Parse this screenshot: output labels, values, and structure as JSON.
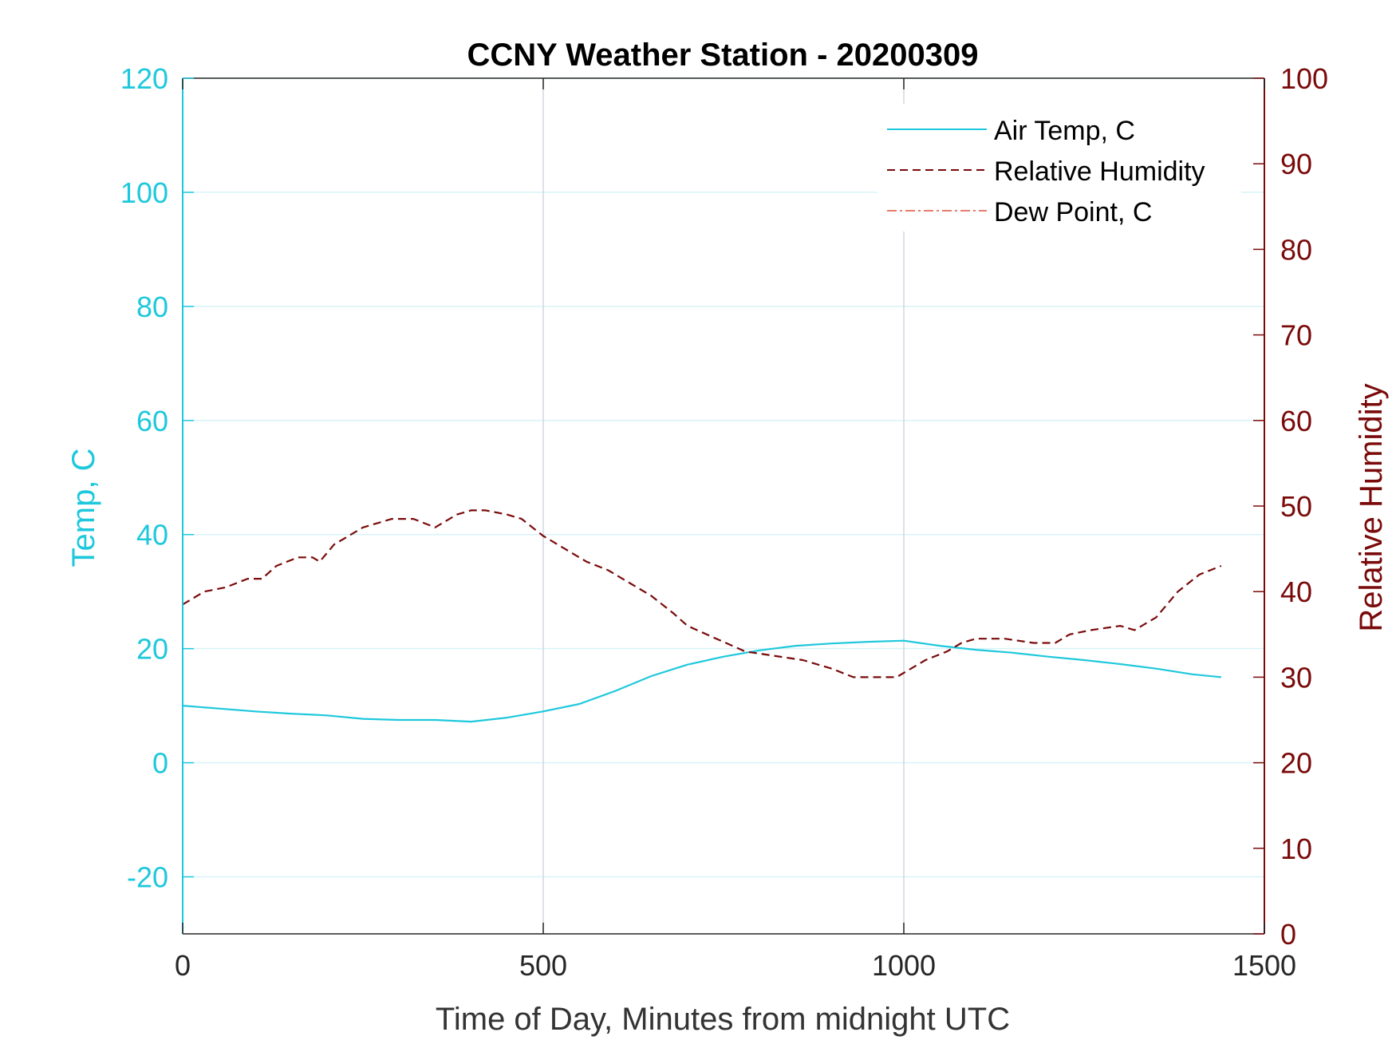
{
  "chart_data": {
    "type": "line",
    "title": "CCNY Weather Station - 20200309",
    "xlabel": "Time of Day, Minutes from midnight UTC",
    "ylabel_left": "Temp, C",
    "ylabel_right": "Relative Humidity",
    "xlim": [
      0,
      1500
    ],
    "ylim_left": [
      -30,
      120
    ],
    "ylim_right": [
      0,
      100
    ],
    "x_ticks": [
      0,
      500,
      1000,
      1500
    ],
    "y_left_ticks": [
      -20,
      0,
      20,
      40,
      60,
      80,
      100,
      120
    ],
    "y_right_ticks": [
      0,
      10,
      20,
      30,
      40,
      50,
      60,
      70,
      80,
      90,
      100
    ],
    "grid": true,
    "legend_position": "top-right",
    "colors": {
      "air_temp": "#1ec8dc",
      "humidity": "#7a0a0a",
      "dew_point": "#e0503c",
      "left_axis": "#1ec8dc",
      "right_axis": "#7a0a0a",
      "grid_y": "#d8f3f8",
      "grid_x": "#d0d8e0"
    },
    "series": [
      {
        "name": "Air Temp, C",
        "axis": "left",
        "style": "solid",
        "x": [
          0,
          50,
          100,
          150,
          200,
          250,
          300,
          350,
          400,
          450,
          500,
          550,
          600,
          650,
          700,
          750,
          800,
          850,
          900,
          950,
          1000,
          1050,
          1100,
          1150,
          1200,
          1250,
          1300,
          1350,
          1400,
          1440
        ],
        "values": [
          10,
          9.5,
          9,
          8.6,
          8.3,
          7.7,
          7.5,
          7.5,
          7.2,
          7.9,
          9,
          10.3,
          12.6,
          15.2,
          17.2,
          18.6,
          19.7,
          20.5,
          20.9,
          21.2,
          21.4,
          20.5,
          19.8,
          19.3,
          18.6,
          18,
          17.3,
          16.5,
          15.5,
          15
        ]
      },
      {
        "name": "Relative Humidity",
        "axis": "right",
        "style": "dashed",
        "x": [
          0,
          30,
          60,
          90,
          110,
          130,
          160,
          180,
          190,
          210,
          250,
          290,
          320,
          350,
          380,
          400,
          420,
          450,
          470,
          500,
          530,
          560,
          590,
          620,
          650,
          680,
          700,
          740,
          780,
          820,
          860,
          900,
          930,
          960,
          990,
          1000,
          1030,
          1060,
          1080,
          1100,
          1140,
          1180,
          1210,
          1230,
          1260,
          1300,
          1320,
          1350,
          1380,
          1410,
          1440
        ],
        "values": [
          38.5,
          40,
          40.5,
          41.5,
          41.5,
          43,
          44,
          44,
          43.5,
          45.5,
          47.5,
          48.5,
          48.5,
          47.5,
          49,
          49.5,
          49.5,
          49,
          48.5,
          46.5,
          45,
          43.5,
          42.5,
          41,
          39.5,
          37.5,
          36,
          34.5,
          33,
          32.5,
          32,
          31,
          30,
          30,
          30,
          30.5,
          32,
          33,
          34,
          34.5,
          34.5,
          34,
          34,
          35,
          35.5,
          36,
          35.5,
          37,
          40,
          42,
          43
        ]
      },
      {
        "name": "Dew Point, C",
        "axis": "left",
        "style": "dashdot",
        "x": [],
        "values": []
      }
    ]
  }
}
